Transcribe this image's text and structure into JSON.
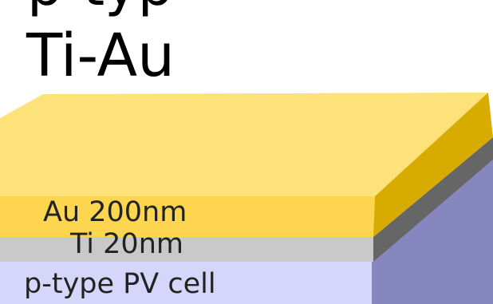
{
  "diagram": {
    "title_partial": "p-typ",
    "title": "Ti-Au",
    "layers": {
      "gold": {
        "label": "Au 200nm",
        "top_color": "#fde27a",
        "front_color": "#fdd54f",
        "side_color": "#d8ab00"
      },
      "titanium": {
        "label": "Ti 20nm",
        "front_color": "#c9c9c9",
        "side_color": "#666666"
      },
      "pv_cell": {
        "label": "p-type PV cell",
        "front_color": "#d6d6fb",
        "side_color": "#8787c0"
      }
    }
  }
}
